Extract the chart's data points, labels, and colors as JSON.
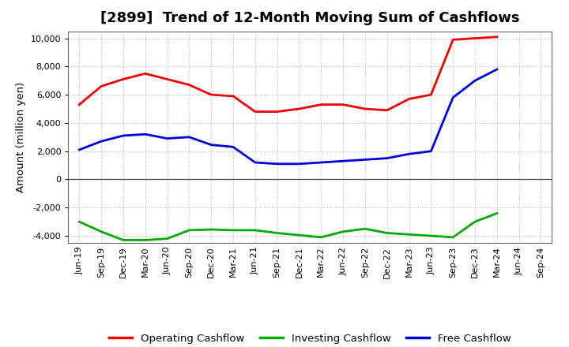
{
  "title": "[2899]  Trend of 12-Month Moving Sum of Cashflows",
  "ylabel": "Amount (million yen)",
  "x_labels": [
    "Jun-19",
    "Sep-19",
    "Dec-19",
    "Mar-20",
    "Jun-20",
    "Sep-20",
    "Dec-20",
    "Mar-21",
    "Jun-21",
    "Sep-21",
    "Dec-21",
    "Mar-22",
    "Jun-22",
    "Sep-22",
    "Dec-22",
    "Mar-23",
    "Jun-23",
    "Sep-23",
    "Dec-23",
    "Mar-24",
    "Jun-24",
    "Sep-24"
  ],
  "operating": [
    5300,
    6600,
    7100,
    7500,
    7100,
    6700,
    6000,
    5900,
    4800,
    4800,
    5000,
    5300,
    5300,
    5000,
    4900,
    5700,
    6000,
    9900,
    10000,
    10100,
    null,
    null
  ],
  "investing": [
    -3000,
    -3700,
    -4300,
    -4300,
    -4200,
    -3600,
    -3550,
    -3600,
    -3600,
    -3800,
    -3950,
    -4100,
    -3700,
    -3500,
    -3800,
    -3900,
    -4000,
    -4100,
    -3000,
    -2400,
    null,
    null
  ],
  "free": [
    2100,
    2700,
    3100,
    3200,
    2900,
    3000,
    2450,
    2300,
    1200,
    1100,
    1100,
    1200,
    1300,
    1400,
    1500,
    1800,
    2000,
    5800,
    7000,
    7800,
    null,
    null
  ],
  "operating_color": "#ee0000",
  "investing_color": "#00aa00",
  "free_color": "#0000dd",
  "ylim": [
    -4500,
    10500
  ],
  "yticks": [
    -4000,
    -2000,
    0,
    2000,
    4000,
    6000,
    8000,
    10000
  ],
  "background_color": "#ffffff",
  "grid_color": "#999999",
  "line_width": 2.0,
  "title_fontsize": 13,
  "legend_fontsize": 9.5,
  "tick_fontsize": 8.0
}
